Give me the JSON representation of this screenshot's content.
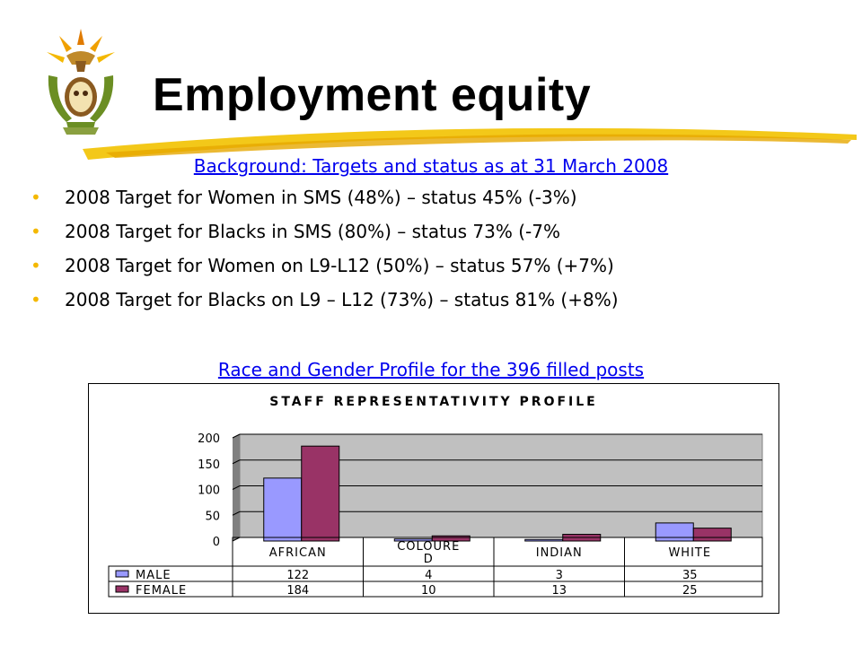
{
  "slide": {
    "title": "Employment equity",
    "subtitle": "Background: Targets and status as at 31 March 2008",
    "bullets": [
      "2008 Target for Women in SMS (48%) – status 45% (-3%)",
      "2008 Target for Blacks in SMS (80%) – status 73% (-7%",
      "2008 Target for Women on L9-L12 (50%) – status 57% (+7%)",
      "2008 Target for Blacks on L9 – L12 (73%) – status 81% (+8%)"
    ],
    "chart_caption": "Race and Gender Profile for the 396 filled posts",
    "bullet_color": "#f4b800",
    "link_color": "#0000ee"
  },
  "chart_data": {
    "type": "bar",
    "title": "STAFF REPRESENTATIVITY PROFILE",
    "categories": [
      "AFRICAN",
      "COLOURED",
      "INDIAN",
      "WHITE"
    ],
    "category_labels_display": [
      [
        "AFRICAN"
      ],
      [
        "COLOURE",
        "D"
      ],
      [
        "INDIAN"
      ],
      [
        "WHITE"
      ]
    ],
    "series": [
      {
        "name": "MALE",
        "values": [
          122,
          4,
          3,
          35
        ],
        "color": "#9999ff"
      },
      {
        "name": "FEMALE",
        "values": [
          184,
          10,
          13,
          25
        ],
        "color": "#993366"
      }
    ],
    "ylim": [
      0,
      200
    ],
    "yticks": [
      0,
      50,
      100,
      150,
      200
    ],
    "grid": true,
    "plot_background": "#c0c0c0",
    "legend": "data-table below plot"
  }
}
